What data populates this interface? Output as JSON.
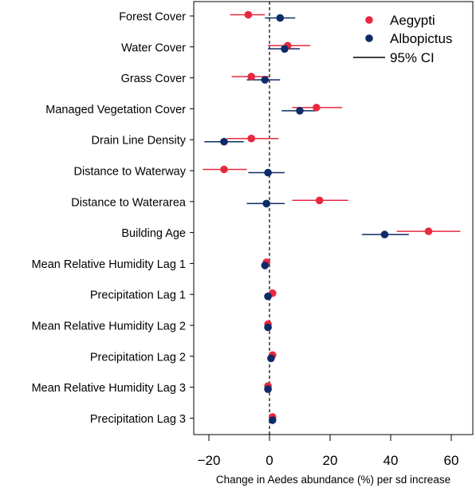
{
  "chart_data": {
    "type": "forest",
    "categories": [
      "Forest Cover",
      "Water Cover",
      "Grass Cover",
      "Managed Vegetation Cover",
      "Drain Line Density",
      "Distance to Waterway",
      "Distance to Waterarea",
      "Building Age",
      "Mean Relative Humidity Lag 1",
      "Precipitation Lag 1",
      "Mean Relative Humidity Lag 2",
      "Precipitation Lag 2",
      "Mean Relative Humidity Lag 3",
      "Precipitation Lag 3"
    ],
    "series": [
      {
        "name": "Aegypti",
        "color": "#e8293f",
        "estimates": [
          -7,
          6,
          -6,
          15.5,
          -6,
          -15,
          16.5,
          52.5,
          -1,
          1,
          -0.5,
          1,
          -0.5,
          1
        ],
        "ci_low": [
          -13,
          -0.5,
          -12.5,
          7.5,
          -14,
          -22,
          7.5,
          42,
          -1.5,
          0.5,
          -1,
          0.5,
          -1,
          0.5
        ],
        "ci_high": [
          -1.5,
          13.5,
          0,
          24,
          3,
          -7.5,
          26,
          63,
          -0.5,
          1.5,
          0,
          1.5,
          0,
          1.5
        ]
      },
      {
        "name": "Albopictus",
        "color": "#0d2b66",
        "estimates": [
          3.5,
          5,
          -1.5,
          10,
          -15,
          -0.5,
          -1,
          38,
          -1.5,
          -0.5,
          -0.5,
          0.5,
          -0.5,
          1
        ],
        "ci_low": [
          -1.5,
          -0.5,
          -7.5,
          4,
          -21.5,
          -7,
          -7.5,
          30.5,
          -2,
          -1,
          -1.5,
          0,
          -1.5,
          0.5
        ],
        "ci_high": [
          8.5,
          10,
          3.5,
          15.5,
          -8.5,
          5,
          5,
          46,
          -1,
          0,
          0.5,
          1,
          0.5,
          1.5
        ]
      }
    ],
    "legend": {
      "entries": [
        "Aegypti",
        "Albopictus",
        "95% CI"
      ],
      "position": "top-right"
    },
    "xlabel": "Change in Aedes abundance (%) per sd increase",
    "xticks": [
      -20,
      0,
      20,
      40,
      60
    ],
    "xtick_labels": [
      "−20",
      "0",
      "20",
      "40",
      "60"
    ],
    "xlim": [
      -25,
      67
    ],
    "reference_line": 0,
    "grid": false
  }
}
